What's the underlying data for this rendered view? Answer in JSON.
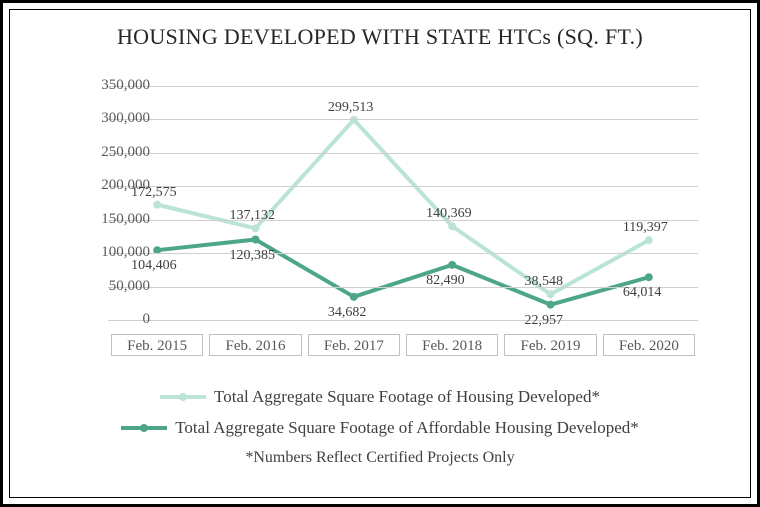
{
  "chart": {
    "type": "line",
    "title": "HOUSING DEVELOPED WITH STATE HTCs (SQ. FT.)",
    "title_fontsize": 22,
    "title_color": "#262626",
    "background_color": "#ffffff",
    "border_color": "#000000",
    "grid_color": "#cfcfcf",
    "ylim": [
      0,
      350000
    ],
    "ytick_step": 50000,
    "yticks": [
      "0",
      "50,000",
      "100,000",
      "150,000",
      "200,000",
      "250,000",
      "300,000",
      "350,000"
    ],
    "categories": [
      "Feb. 2015",
      "Feb. 2016",
      "Feb. 2017",
      "Feb. 2018",
      "Feb. 2019",
      "Feb. 2020"
    ],
    "x_cell_border": "#c0c0c0",
    "label_fontsize": 15,
    "label_color": "#595959",
    "data_label_fontsize": 14,
    "data_label_color": "#404040",
    "line_width": 4,
    "marker_radius": 4,
    "series": [
      {
        "name": "Total Aggregate Square Footage of Housing Developed*",
        "color": "#b9e4d6",
        "values": [
          172575,
          137132,
          299513,
          140369,
          38548,
          119397
        ],
        "labels": [
          "172,575",
          "137,132",
          "299,513",
          "140,369",
          "38,548",
          "119,397"
        ],
        "label_pos": [
          "above",
          "above",
          "above",
          "above",
          "above",
          "above"
        ]
      },
      {
        "name": "Total Aggregate Square Footage of Affordable Housing Developed*",
        "color": "#4da68a",
        "values": [
          104406,
          120385,
          34682,
          82490,
          22957,
          64014
        ],
        "labels": [
          "104,406",
          "120,385",
          "34,682",
          "82,490",
          "22,957",
          "64,014"
        ],
        "label_pos": [
          "below",
          "below",
          "below",
          "below",
          "below",
          "below"
        ]
      }
    ],
    "footnote": "*Numbers Reflect Certified Projects Only",
    "legend_fontsize": 17,
    "footnote_fontsize": 16
  }
}
